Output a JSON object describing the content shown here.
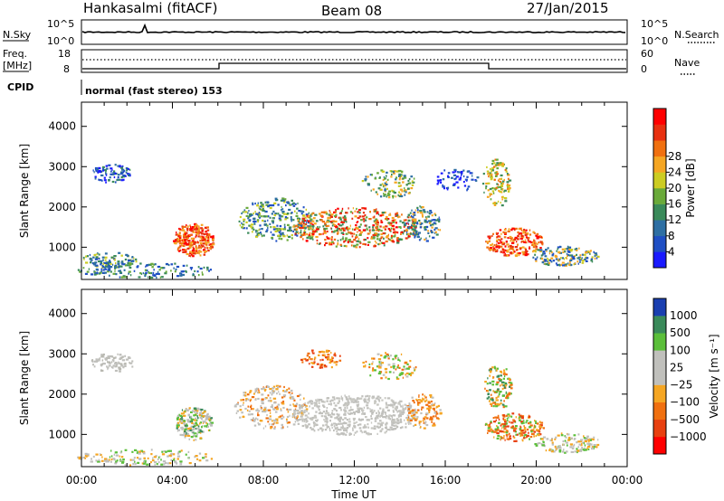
{
  "header": {
    "station": "Hankasalmi (fitACF)",
    "beam": "Beam 08",
    "date": "27/Jan/2015"
  },
  "side_labels": {
    "nsky": "N.Sky",
    "nsearch": "N.Search",
    "freq_line1": "Freq.",
    "freq_line2": "[MHz]",
    "nave": "Nave",
    "cpid": "CPID"
  },
  "noise_panel": {
    "left_ticks": [
      "10^5",
      "10^0"
    ],
    "right_ticks": [
      "10^5",
      "10^0"
    ]
  },
  "freq_panel": {
    "left_ticks": [
      "18",
      "8"
    ],
    "right_ticks": [
      "60",
      "0"
    ]
  },
  "cpid_text": "normal (fast stereo) 153",
  "colors": {
    "power_scale": [
      "#1a1aff",
      "#1f4fc4",
      "#2e6fa3",
      "#3a8a5a",
      "#6aaa3a",
      "#cccc22",
      "#f5a623",
      "#f07010",
      "#e83010",
      "#ff0000"
    ],
    "velocity_scale": [
      "#1a3fb0",
      "#2e6fa3",
      "#3a8a5a",
      "#5bbf3a",
      "#bdbdbd",
      "#bdbdbd",
      "#f5a623",
      "#f07010",
      "#e84010",
      "#ff0000"
    ],
    "ground_scatter": "#c0c0bc"
  },
  "chart_data": [
    {
      "type": "heatmap",
      "panel": "power",
      "xlabel": "",
      "ylabel": "Slant Range [km]",
      "x_ticks": [
        "00:00",
        "04:00",
        "08:00",
        "12:00",
        "16:00",
        "20:00",
        "00:00"
      ],
      "y_ticks": [
        1000,
        2000,
        3000,
        4000
      ],
      "ylim": [
        200,
        4600
      ],
      "colorbar": {
        "label": "Power [dB]",
        "ticks": [
          4,
          8,
          12,
          16,
          20,
          24,
          28
        ]
      }
    },
    {
      "type": "heatmap",
      "panel": "velocity",
      "xlabel": "Time UT",
      "ylabel": "Slant Range [km]",
      "x_ticks": [
        "00:00",
        "04:00",
        "08:00",
        "12:00",
        "16:00",
        "20:00",
        "00:00"
      ],
      "y_ticks": [
        1000,
        2000,
        3000,
        4000
      ],
      "ylim": [
        200,
        4600
      ],
      "colorbar": {
        "label": "Velocity [m s⁻¹]",
        "ticks": [
          "1000",
          "500",
          "100",
          "25",
          "−25",
          "−100",
          "−500",
          "−1000"
        ]
      }
    }
  ]
}
